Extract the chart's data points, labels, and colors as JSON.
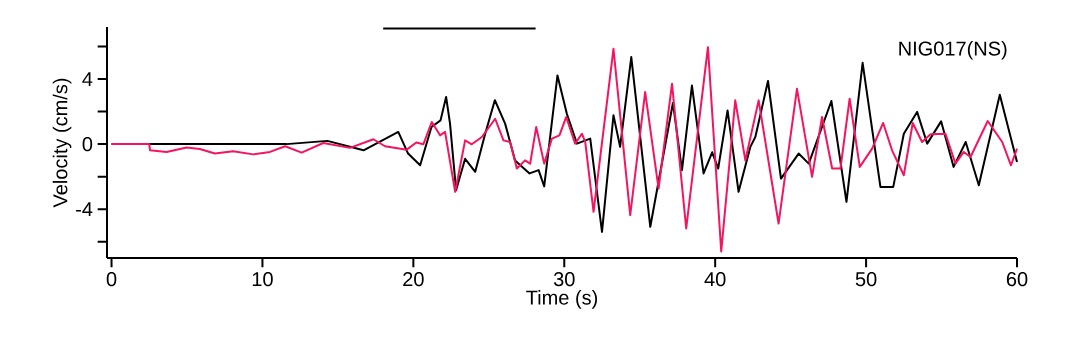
{
  "chart_data": {
    "type": "line",
    "xlabel": "Time (s)",
    "ylabel": "Velocity (cm/s)",
    "annotations": [
      "NIG017(NS)"
    ],
    "xlim": [
      -0.3,
      60
    ],
    "ylim": [
      -7,
      7.2
    ],
    "xticks": [
      0,
      10,
      20,
      30,
      40,
      50,
      60
    ],
    "yticks": [
      {
        "value": -6,
        "label": null
      },
      -4,
      {
        "value": -2,
        "label": null
      },
      0,
      {
        "value": 2,
        "label": null
      },
      4,
      {
        "value": 6,
        "label": null
      }
    ],
    "grid": false,
    "marker": "none",
    "line_style": "solid",
    "series": [
      {
        "type": "line",
        "color": "#000000",
        "x": [
          18.0,
          28.1
        ],
        "values": [
          7.1,
          7.1
        ]
      },
      {
        "color": "#000000",
        "x": [
          0,
          11.6,
          14.3,
          16.7,
          19.0,
          19.65,
          20.45,
          21.2,
          21.8,
          22.17,
          22.43,
          22.83,
          23.43,
          24.1,
          24.76,
          25.4,
          26.08,
          26.74,
          27.7,
          28.3,
          28.67,
          29.55,
          30.17,
          30.84,
          31.72,
          32.5,
          33.26,
          33.7,
          34.44,
          35.7,
          37.2,
          37.8,
          38.46,
          39.23,
          39.8,
          40.2,
          40.82,
          41.55,
          42.33,
          42.66,
          43.5,
          44.36,
          45.53,
          46.2,
          47.7,
          48.7,
          49.77,
          50.95,
          51.8,
          52.5,
          53.38,
          54.05,
          54.97,
          55.8,
          56.6,
          57.47,
          58.86,
          60.0
        ],
        "values": [
          0,
          0,
          0.2,
          -0.38,
          0.75,
          -0.58,
          -1.3,
          1.05,
          1.46,
          2.9,
          1.26,
          -2.83,
          -0.9,
          -1.7,
          0.64,
          2.7,
          1.26,
          -1.0,
          -1.8,
          -1.6,
          -2.6,
          4.22,
          1.87,
          0.03,
          0.34,
          -5.4,
          1.77,
          -0.17,
          5.35,
          -5.08,
          2.53,
          -1.6,
          3.6,
          -1.8,
          -0.5,
          -1.5,
          2.07,
          -2.93,
          -0.17,
          0.44,
          3.88,
          -2.12,
          -0.58,
          -1.2,
          2.65,
          -3.55,
          5.0,
          -2.63,
          -2.63,
          0.64,
          1.98,
          0.03,
          1.4,
          -1.4,
          0.13,
          -2.53,
          3.04,
          -1.1
        ]
      },
      {
        "color": "#f5145f",
        "x": [
          0,
          2.5,
          2.55,
          3.65,
          4.97,
          5.85,
          6.85,
          8.06,
          9.39,
          10.5,
          11.5,
          12.6,
          14.03,
          15.8,
          17.35,
          18.12,
          19.56,
          20.2,
          20.66,
          21.22,
          21.77,
          22.1,
          22.77,
          23.43,
          23.87,
          24.54,
          25.42,
          25.97,
          26.41,
          26.86,
          27.4,
          27.74,
          28.14,
          28.67,
          29.18,
          29.68,
          30.13,
          30.72,
          31.17,
          31.39,
          31.94,
          33.26,
          34.37,
          35.36,
          36.25,
          37.14,
          38.08,
          39.52,
          40.4,
          41.33,
          42.0,
          42.88,
          44.2,
          45.42,
          46.42,
          47.08,
          47.75,
          48.3,
          48.91,
          49.58,
          50.4,
          51.13,
          51.72,
          52.5,
          53.09,
          53.71,
          54.27,
          55.26,
          55.92,
          56.47,
          56.92,
          58.06,
          59.02,
          59.6,
          60.0
        ],
        "values": [
          0,
          0,
          -0.38,
          -0.48,
          -0.21,
          -0.3,
          -0.58,
          -0.44,
          -0.63,
          -0.48,
          -0.13,
          -0.52,
          0.07,
          -0.23,
          0.3,
          -0.13,
          -0.34,
          0.1,
          -0.01,
          1.36,
          0.54,
          0.75,
          -2.93,
          0.23,
          -0.01,
          0.44,
          1.56,
          0.23,
          0.13,
          -1.5,
          -1.0,
          -1.2,
          1.05,
          -1.2,
          0.34,
          0.54,
          1.67,
          0.03,
          0.64,
          0.13,
          -4.16,
          5.86,
          -4.37,
          3.2,
          -2.73,
          3.71,
          -5.18,
          5.96,
          -6.6,
          2.69,
          -1.0,
          2.69,
          -4.88,
          3.4,
          -2.01,
          1.67,
          -1.5,
          -1.5,
          2.79,
          -1.4,
          -0.28,
          1.3,
          -0.38,
          -1.91,
          1.3,
          0.13,
          0.6,
          0.64,
          -1.2,
          -0.48,
          -0.79,
          1.42,
          0.13,
          -1.3,
          -0.28
        ]
      }
    ]
  }
}
